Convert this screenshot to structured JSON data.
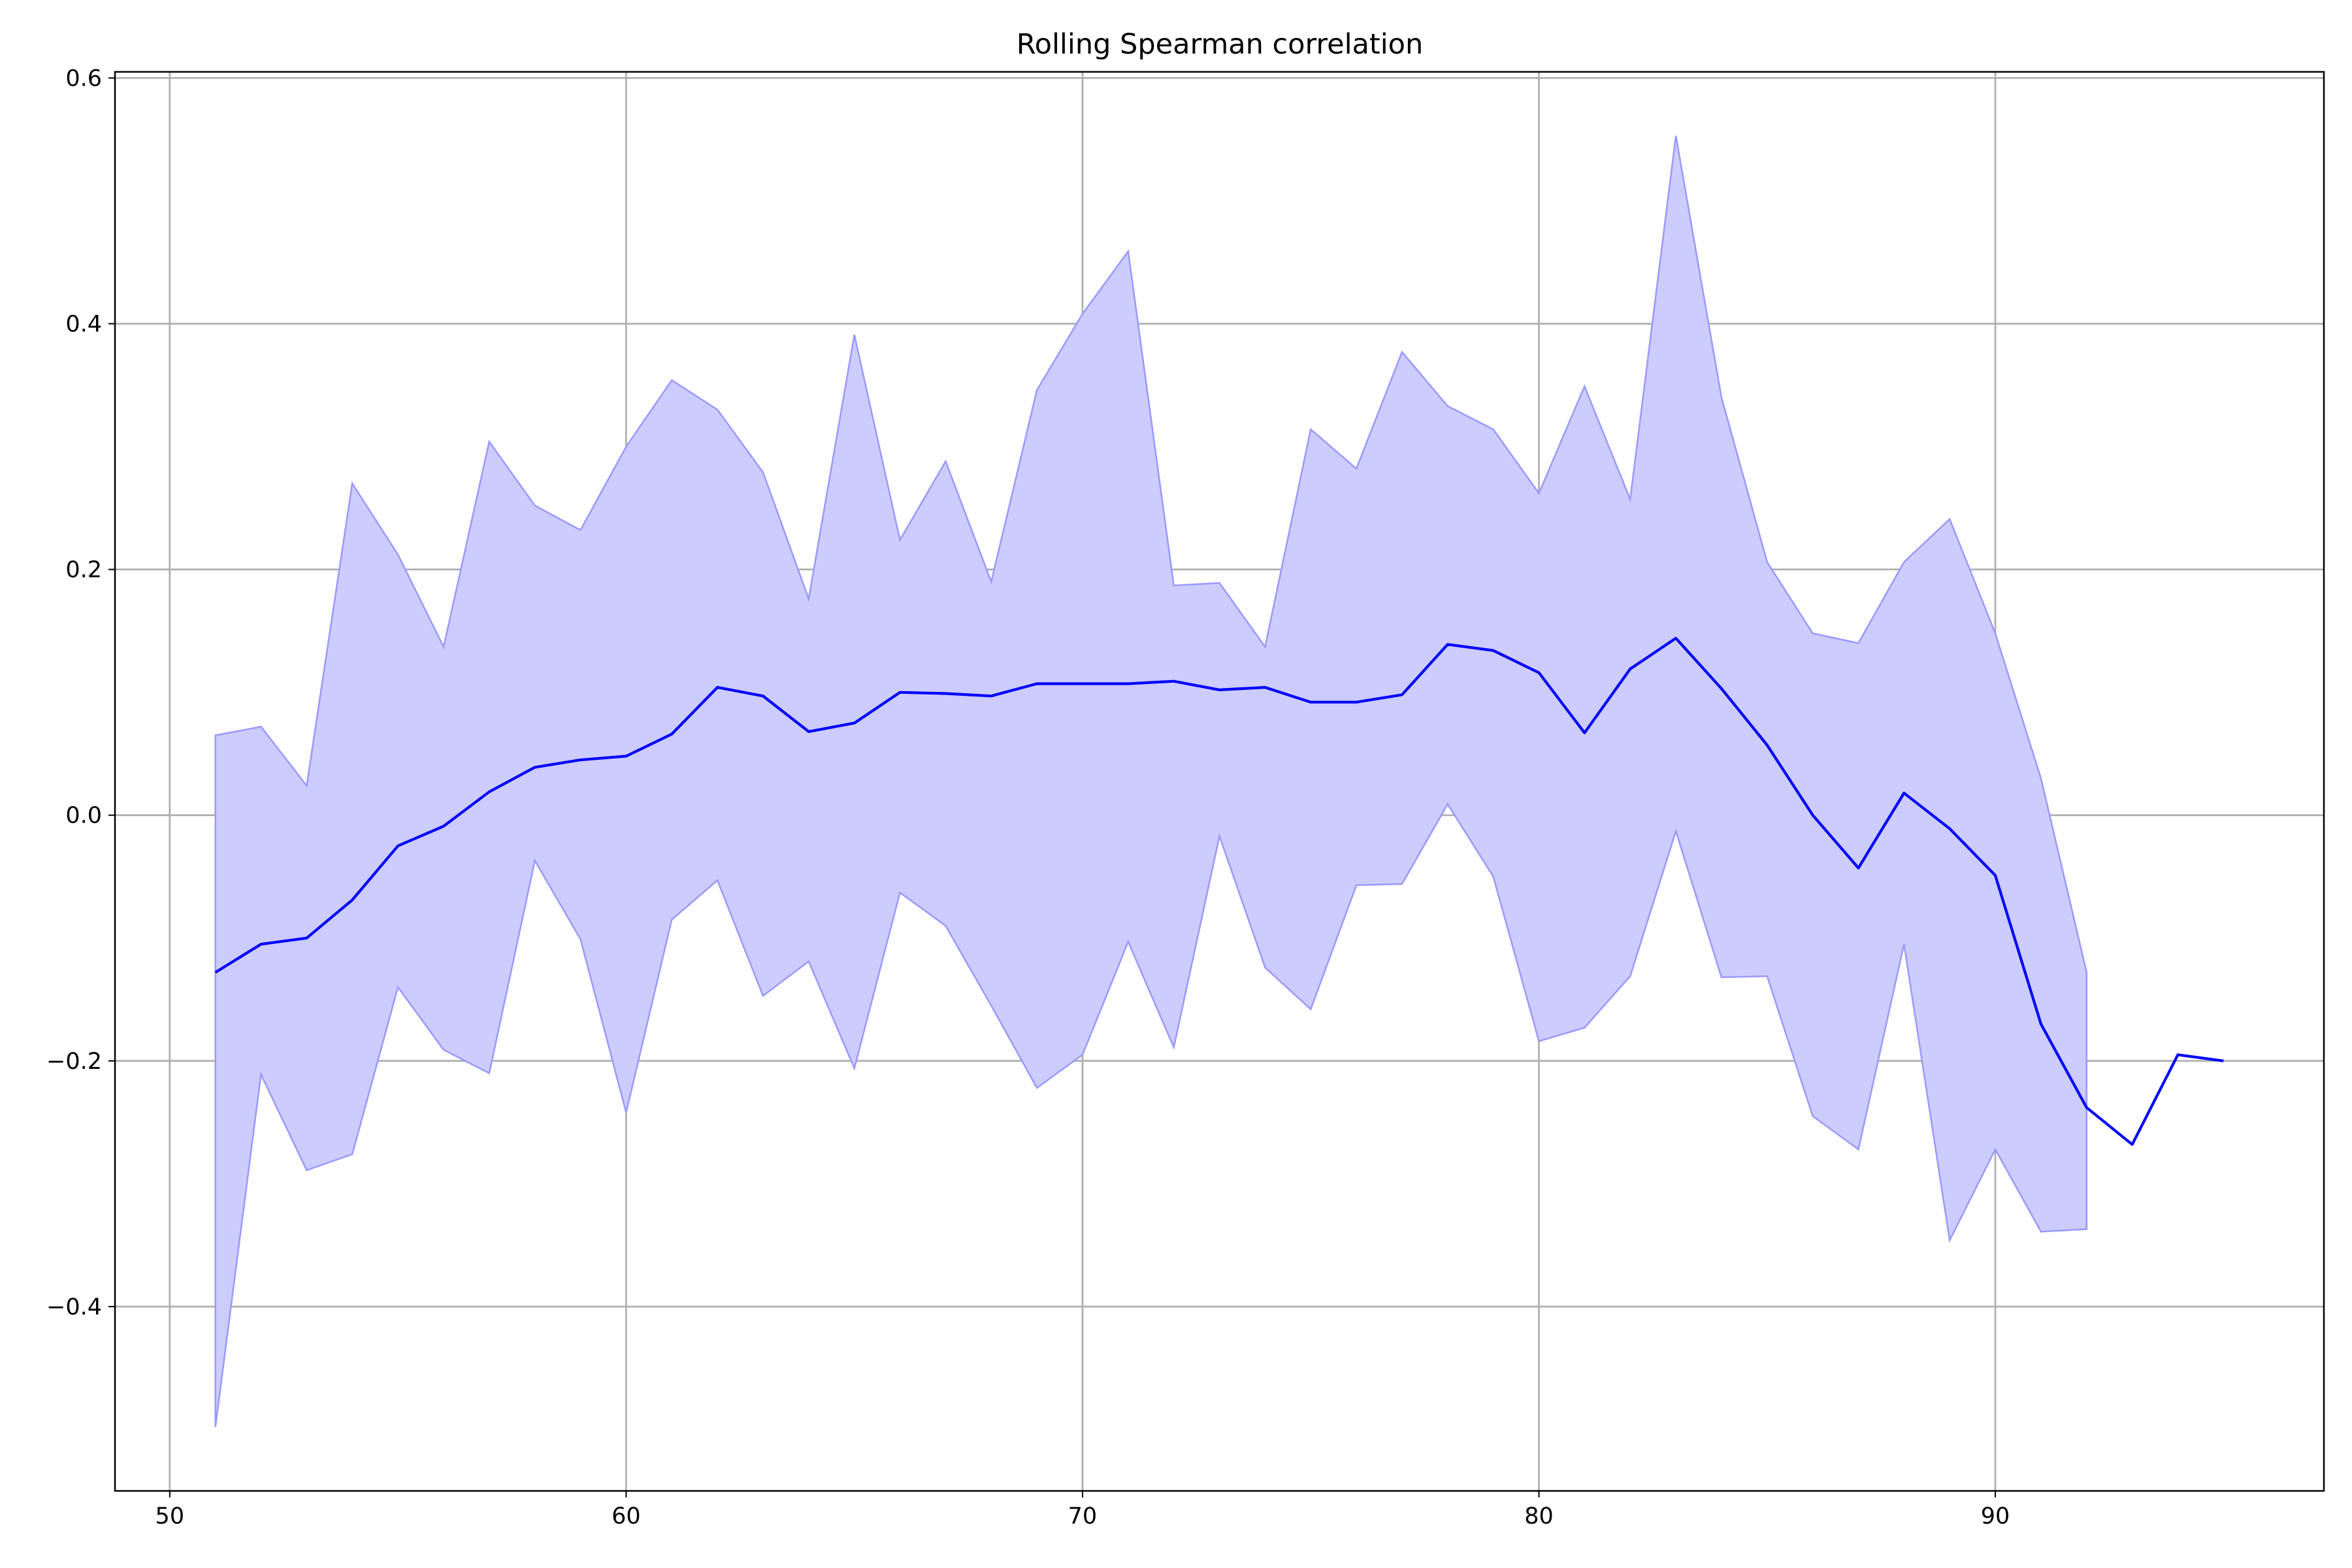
{
  "chart_data": {
    "type": "line",
    "title": "Rolling Spearman correlation",
    "xlabel": "",
    "ylabel": "",
    "xlim": [
      48.8,
      97.2
    ],
    "ylim": [
      -0.55,
      0.605
    ],
    "xticks": [
      50,
      60,
      70,
      80,
      90
    ],
    "yticks": [
      -0.4,
      -0.2,
      0.0,
      0.2,
      0.4,
      0.6
    ],
    "xtick_labels": [
      "50",
      "60",
      "70",
      "80",
      "90"
    ],
    "ytick_labels": [
      "−0.4",
      "−0.2",
      "0.0",
      "0.2",
      "0.4",
      "0.6"
    ],
    "grid": true,
    "line_color": "#0000ff",
    "band_color": "#ccccff",
    "band_edge_color": "#9999ff",
    "series": [
      {
        "x": [
          51,
          52,
          53,
          54,
          55,
          56,
          57,
          58,
          59,
          60,
          61,
          62,
          63,
          64,
          65,
          66,
          67,
          68,
          69,
          70,
          71,
          72,
          73,
          74,
          75,
          76,
          77,
          78,
          79,
          80,
          81,
          82,
          83,
          84,
          85,
          86,
          87,
          88,
          89,
          90,
          91,
          92,
          93,
          94,
          95
        ],
        "values": [
          -0.128,
          -0.105,
          -0.1,
          -0.069,
          -0.025,
          -0.009,
          0.019,
          0.039,
          0.045,
          0.048,
          0.066,
          0.104,
          0.097,
          0.068,
          0.075,
          0.1,
          0.099,
          0.097,
          0.107,
          0.107,
          0.107,
          0.109,
          0.102,
          0.104,
          0.092,
          0.092,
          0.098,
          0.139,
          0.134,
          0.116,
          0.067,
          0.119,
          0.144,
          0.103,
          0.057,
          0.0,
          -0.043,
          0.018,
          -0.011,
          -0.049,
          -0.17,
          -0.238,
          -0.268,
          -0.195,
          -0.2
        ]
      }
    ],
    "band": {
      "x": [
        51,
        52,
        53,
        54,
        55,
        56,
        57,
        58,
        59,
        60,
        61,
        62,
        63,
        64,
        65,
        66,
        67,
        68,
        69,
        70,
        71,
        72,
        73,
        74,
        75,
        76,
        77,
        78,
        79,
        80,
        81,
        82,
        83,
        84,
        85,
        86,
        87,
        88,
        89,
        90,
        91,
        92
      ],
      "upper": [
        0.065,
        0.072,
        0.024,
        0.27,
        0.212,
        0.137,
        0.304,
        0.252,
        0.232,
        0.3,
        0.354,
        0.33,
        0.279,
        0.176,
        0.391,
        0.224,
        0.288,
        0.19,
        0.346,
        0.408,
        0.459,
        0.187,
        0.189,
        0.137,
        0.314,
        0.282,
        0.377,
        0.333,
        0.314,
        0.262,
        0.349,
        0.257,
        0.553,
        0.34,
        0.206,
        0.148,
        0.14,
        0.206,
        0.241,
        0.148,
        0.03,
        -0.128
      ],
      "lower": [
        -0.498,
        -0.211,
        -0.289,
        -0.276,
        -0.14,
        -0.191,
        -0.21,
        -0.037,
        -0.101,
        -0.242,
        -0.085,
        -0.053,
        -0.147,
        -0.119,
        -0.206,
        -0.063,
        -0.09,
        -0.155,
        -0.222,
        -0.195,
        -0.103,
        -0.189,
        -0.017,
        -0.124,
        -0.158,
        -0.057,
        -0.056,
        0.009,
        -0.05,
        -0.184,
        -0.173,
        -0.131,
        -0.013,
        -0.132,
        -0.131,
        -0.245,
        -0.272,
        -0.105,
        -0.346,
        -0.272,
        -0.339,
        -0.337
      ]
    }
  }
}
